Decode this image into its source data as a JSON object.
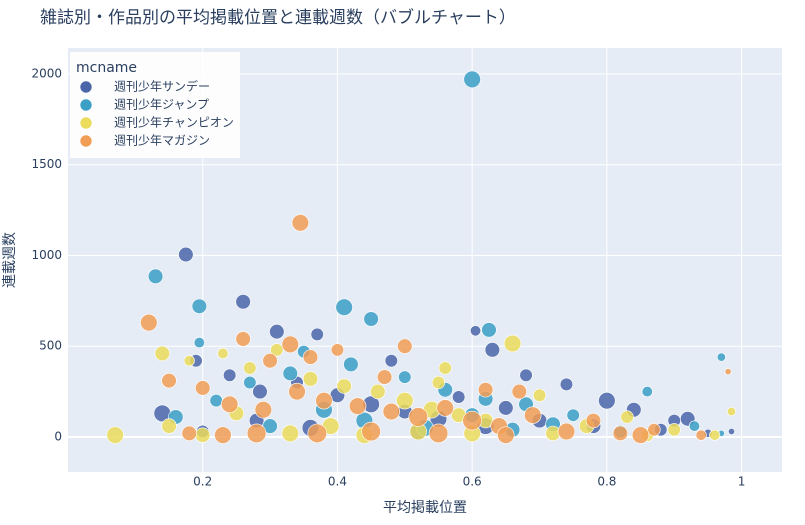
{
  "chart_data": {
    "type": "scatter",
    "title": "雑誌別・作品別の平均掲載位置と連載週数（バブルチャート）",
    "x_label": "平均掲載位置",
    "y_label": "連載週数",
    "legend_title": "mcname",
    "legend_corner": "top-left",
    "grid": true,
    "xlim": [
      0,
      1.06
    ],
    "xticks": [
      0.2,
      0.4,
      0.6,
      0.8,
      1
    ],
    "ylim": [
      -193,
      2143
    ],
    "yticks": [
      0,
      500,
      1000,
      1500,
      2000
    ],
    "series": [
      {
        "name": "週刊少年サンデー",
        "color": "#4a65a8",
        "x": [
          0.175,
          0.26,
          0.31,
          0.37,
          0.605,
          0.63,
          0.8,
          0.14,
          0.92,
          0.19,
          0.24,
          0.285,
          0.34,
          0.4,
          0.45,
          0.5,
          0.55,
          0.58,
          0.65,
          0.7,
          0.74,
          0.78,
          0.84,
          0.88,
          0.95,
          0.2,
          0.36,
          0.52,
          0.68,
          0.48,
          0.28,
          0.62,
          0.985,
          0.9
        ],
        "values": [
          1005,
          745,
          580,
          565,
          585,
          480,
          200,
          130,
          100,
          420,
          340,
          250,
          300,
          230,
          180,
          140,
          100,
          220,
          160,
          90,
          290,
          60,
          150,
          40,
          20,
          30,
          50,
          30,
          340,
          420,
          90,
          60,
          30,
          90
        ],
        "sizes": [
          7,
          7,
          7,
          6,
          5,
          7,
          8,
          8,
          7,
          6,
          6,
          7,
          6,
          7,
          8,
          7,
          8,
          6,
          7,
          7,
          6,
          7,
          7,
          6,
          4,
          6,
          8,
          8,
          6,
          6,
          7,
          8,
          3,
          6
        ]
      },
      {
        "name": "週刊少年ジャンプ",
        "color": "#3b9fc6",
        "x": [
          0.6,
          0.13,
          0.195,
          0.41,
          0.45,
          0.625,
          0.97,
          0.195,
          0.35,
          0.33,
          0.27,
          0.42,
          0.5,
          0.56,
          0.62,
          0.68,
          0.75,
          0.86,
          0.93,
          0.16,
          0.22,
          0.38,
          0.44,
          0.53,
          0.66,
          0.72,
          0.82,
          0.6,
          0.3,
          0.97
        ],
        "values": [
          1970,
          885,
          720,
          715,
          650,
          590,
          440,
          520,
          470,
          350,
          300,
          400,
          330,
          260,
          210,
          180,
          120,
          250,
          60,
          110,
          200,
          150,
          90,
          50,
          40,
          70,
          30,
          120,
          60,
          20
        ],
        "sizes": [
          8,
          7,
          7,
          8,
          7,
          7,
          4,
          5,
          6,
          7,
          6,
          7,
          6,
          7,
          7,
          7,
          6,
          5,
          5,
          7,
          6,
          8,
          8,
          8,
          7,
          7,
          6,
          7,
          7,
          3
        ]
      },
      {
        "name": "週刊少年チャンピオン",
        "color": "#ebdc5c",
        "x": [
          0.07,
          0.14,
          0.66,
          0.55,
          0.985,
          0.18,
          0.23,
          0.27,
          0.31,
          0.36,
          0.41,
          0.46,
          0.5,
          0.54,
          0.58,
          0.62,
          0.7,
          0.77,
          0.83,
          0.9,
          0.96,
          0.15,
          0.2,
          0.25,
          0.33,
          0.39,
          0.44,
          0.52,
          0.6,
          0.72,
          0.86,
          0.56
        ],
        "values": [
          10,
          460,
          515,
          300,
          140,
          420,
          460,
          380,
          480,
          320,
          280,
          250,
          200,
          150,
          120,
          90,
          230,
          60,
          110,
          40,
          10,
          60,
          10,
          130,
          20,
          60,
          10,
          30,
          20,
          20,
          10,
          380
        ],
        "sizes": [
          8,
          7,
          8,
          6,
          4,
          5,
          5,
          6,
          6,
          7,
          7,
          7,
          8,
          8,
          7,
          7,
          6,
          7,
          6,
          6,
          5,
          7,
          7,
          7,
          8,
          8,
          8,
          8,
          8,
          7,
          6,
          6
        ]
      },
      {
        "name": "週刊少年マガジン",
        "color": "#f29d55",
        "x": [
          0.345,
          0.12,
          0.33,
          0.5,
          0.98,
          0.47,
          0.26,
          0.3,
          0.36,
          0.4,
          0.15,
          0.2,
          0.24,
          0.29,
          0.34,
          0.38,
          0.43,
          0.48,
          0.52,
          0.56,
          0.6,
          0.64,
          0.69,
          0.74,
          0.78,
          0.82,
          0.87,
          0.94,
          0.18,
          0.23,
          0.28,
          0.37,
          0.45,
          0.55,
          0.65,
          0.85,
          0.62,
          0.67
        ],
        "values": [
          1180,
          630,
          510,
          500,
          360,
          330,
          540,
          420,
          440,
          480,
          310,
          270,
          180,
          150,
          250,
          200,
          170,
          140,
          110,
          160,
          90,
          60,
          120,
          30,
          90,
          20,
          40,
          10,
          20,
          10,
          20,
          20,
          30,
          20,
          10,
          10,
          260,
          250
        ],
        "sizes": [
          8,
          8,
          8,
          7,
          3,
          7,
          7,
          7,
          7,
          6,
          7,
          7,
          8,
          8,
          8,
          8,
          8,
          8,
          9,
          8,
          9,
          8,
          8,
          8,
          7,
          7,
          6,
          5,
          7,
          8,
          9,
          9,
          9,
          9,
          8,
          8,
          7,
          7
        ]
      }
    ]
  }
}
